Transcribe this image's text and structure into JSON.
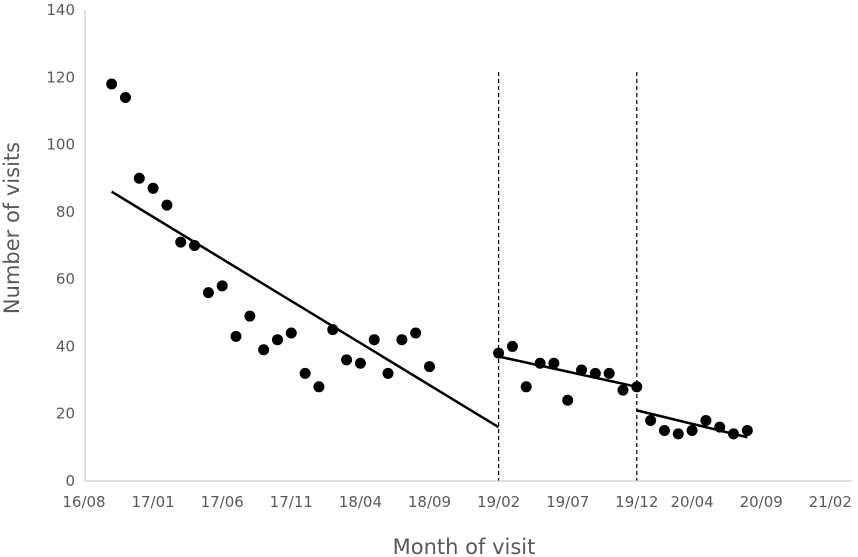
{
  "chart_data": {
    "type": "scatter",
    "xlabel": "Month of visit",
    "ylabel": "Number of visits",
    "ylim": [
      0,
      140
    ],
    "yticks": [
      0,
      20,
      40,
      60,
      80,
      100,
      120,
      140
    ],
    "xticks": [
      "16/08",
      "17/01",
      "17/06",
      "17/11",
      "18/04",
      "18/09",
      "19/02",
      "19/07",
      "19/12",
      "20/04",
      "20/09",
      "21/02"
    ],
    "grid": false,
    "legend": "none",
    "colors": {
      "points": "#000000",
      "axis": "#bfbfbf",
      "text": "#595959"
    },
    "points": [
      {
        "x": "16/10",
        "y": 118
      },
      {
        "x": "16/11",
        "y": 114
      },
      {
        "x": "16/12",
        "y": 90
      },
      {
        "x": "17/01",
        "y": 87
      },
      {
        "x": "17/02",
        "y": 82
      },
      {
        "x": "17/03",
        "y": 71
      },
      {
        "x": "17/04",
        "y": 70
      },
      {
        "x": "17/05",
        "y": 56
      },
      {
        "x": "17/06",
        "y": 58
      },
      {
        "x": "17/07",
        "y": 43
      },
      {
        "x": "17/08",
        "y": 49
      },
      {
        "x": "17/09",
        "y": 39
      },
      {
        "x": "17/10",
        "y": 42
      },
      {
        "x": "17/11",
        "y": 44
      },
      {
        "x": "17/12",
        "y": 32
      },
      {
        "x": "18/01",
        "y": 28
      },
      {
        "x": "18/02",
        "y": 45
      },
      {
        "x": "18/03",
        "y": 36
      },
      {
        "x": "18/04",
        "y": 35
      },
      {
        "x": "18/05",
        "y": 42
      },
      {
        "x": "18/06",
        "y": 32
      },
      {
        "x": "18/07",
        "y": 42
      },
      {
        "x": "18/08",
        "y": 44
      },
      {
        "x": "18/09",
        "y": 34
      },
      {
        "x": "19/02",
        "y": 38
      },
      {
        "x": "19/03",
        "y": 40
      },
      {
        "x": "19/04",
        "y": 28
      },
      {
        "x": "19/05",
        "y": 35
      },
      {
        "x": "19/06",
        "y": 35
      },
      {
        "x": "19/07",
        "y": 24
      },
      {
        "x": "19/08",
        "y": 33
      },
      {
        "x": "19/09",
        "y": 32
      },
      {
        "x": "19/10",
        "y": 32
      },
      {
        "x": "19/11",
        "y": 27
      },
      {
        "x": "19/12",
        "y": 28
      },
      {
        "x": "20/01",
        "y": 18
      },
      {
        "x": "20/02",
        "y": 15
      },
      {
        "x": "20/03",
        "y": 14
      },
      {
        "x": "20/04",
        "y": 15
      },
      {
        "x": "20/05",
        "y": 18
      },
      {
        "x": "20/06",
        "y": 16
      },
      {
        "x": "20/07",
        "y": 14
      },
      {
        "x": "20/08",
        "y": 15
      }
    ],
    "trendlines": [
      {
        "x": [
          "16/10",
          "19/02"
        ],
        "y": [
          86,
          16
        ]
      },
      {
        "x": [
          "19/02",
          "19/12"
        ],
        "y": [
          37,
          28
        ]
      },
      {
        "x": [
          "19/12",
          "20/08"
        ],
        "y": [
          21,
          13
        ]
      }
    ],
    "vlines": [
      "19/02",
      "19/12"
    ]
  }
}
